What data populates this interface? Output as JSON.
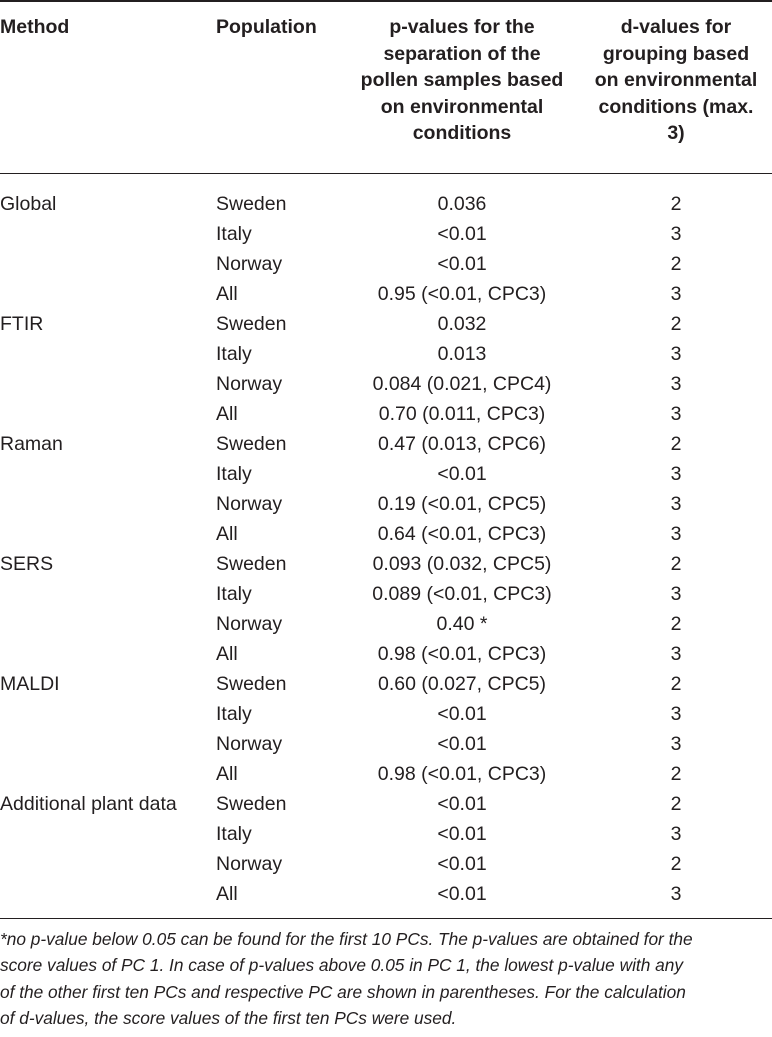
{
  "header": {
    "method": "Method",
    "population": "Population",
    "p_values_lines": [
      "p-values for the",
      "separation of the",
      "pollen samples based",
      "on environmental",
      "conditions"
    ],
    "d_values_lines": [
      "d-values for",
      "grouping based",
      "on environmental",
      "conditions (max.",
      "3)"
    ]
  },
  "rows": [
    {
      "method": "Global",
      "population": "Sweden",
      "p": "0.036",
      "d": "2"
    },
    {
      "method": "",
      "population": "Italy",
      "p": "<0.01",
      "d": "3"
    },
    {
      "method": "",
      "population": "Norway",
      "p": "<0.01",
      "d": "2"
    },
    {
      "method": "",
      "population": "All",
      "p": "0.95 (<0.01, CPC3)",
      "d": "3"
    },
    {
      "method": "FTIR",
      "population": "Sweden",
      "p": "0.032",
      "d": "2"
    },
    {
      "method": "",
      "population": "Italy",
      "p": "0.013",
      "d": "3"
    },
    {
      "method": "",
      "population": "Norway",
      "p": "0.084 (0.021, CPC4)",
      "d": "3"
    },
    {
      "method": "",
      "population": "All",
      "p": "0.70 (0.011, CPC3)",
      "d": "3"
    },
    {
      "method": "Raman",
      "population": "Sweden",
      "p": "0.47 (0.013, CPC6)",
      "d": "2"
    },
    {
      "method": "",
      "population": "Italy",
      "p": "<0.01",
      "d": "3"
    },
    {
      "method": "",
      "population": "Norway",
      "p": "0.19 (<0.01, CPC5)",
      "d": "3"
    },
    {
      "method": "",
      "population": "All",
      "p": "0.64 (<0.01, CPC3)",
      "d": "3"
    },
    {
      "method": "SERS",
      "population": "Sweden",
      "p": "0.093 (0.032, CPC5)",
      "d": "2"
    },
    {
      "method": "",
      "population": "Italy",
      "p": "0.089 (<0.01, CPC3)",
      "d": "3"
    },
    {
      "method": "",
      "population": "Norway",
      "p": "0.40 *",
      "d": "2"
    },
    {
      "method": "",
      "population": "All",
      "p": "0.98 (<0.01, CPC3)",
      "d": "3"
    },
    {
      "method": "MALDI",
      "population": "Sweden",
      "p": "0.60 (0.027, CPC5)",
      "d": "2"
    },
    {
      "method": "",
      "population": "Italy",
      "p": "<0.01",
      "d": "3"
    },
    {
      "method": "",
      "population": "Norway",
      "p": "<0.01",
      "d": "3"
    },
    {
      "method": "",
      "population": "All",
      "p": "0.98 (<0.01, CPC3)",
      "d": "2"
    },
    {
      "method": "Additional plant data",
      "population": "Sweden",
      "p": "<0.01",
      "d": "2"
    },
    {
      "method": "",
      "population": "Italy",
      "p": "<0.01",
      "d": "3"
    },
    {
      "method": "",
      "population": "Norway",
      "p": "<0.01",
      "d": "2"
    },
    {
      "method": "",
      "population": "All",
      "p": "<0.01",
      "d": "3"
    }
  ],
  "footnote_lines": [
    "*no p-value below 0.05 can be found for the first 10 PCs. The p-values are obtained for the",
    "score values of PC 1. In case of p-values above 0.05 in PC 1, the lowest p-value with any",
    "of the other first ten PCs and respective PC are shown in parentheses. For the calculation",
    "of d-values, the score values of the first ten PCs were used."
  ]
}
